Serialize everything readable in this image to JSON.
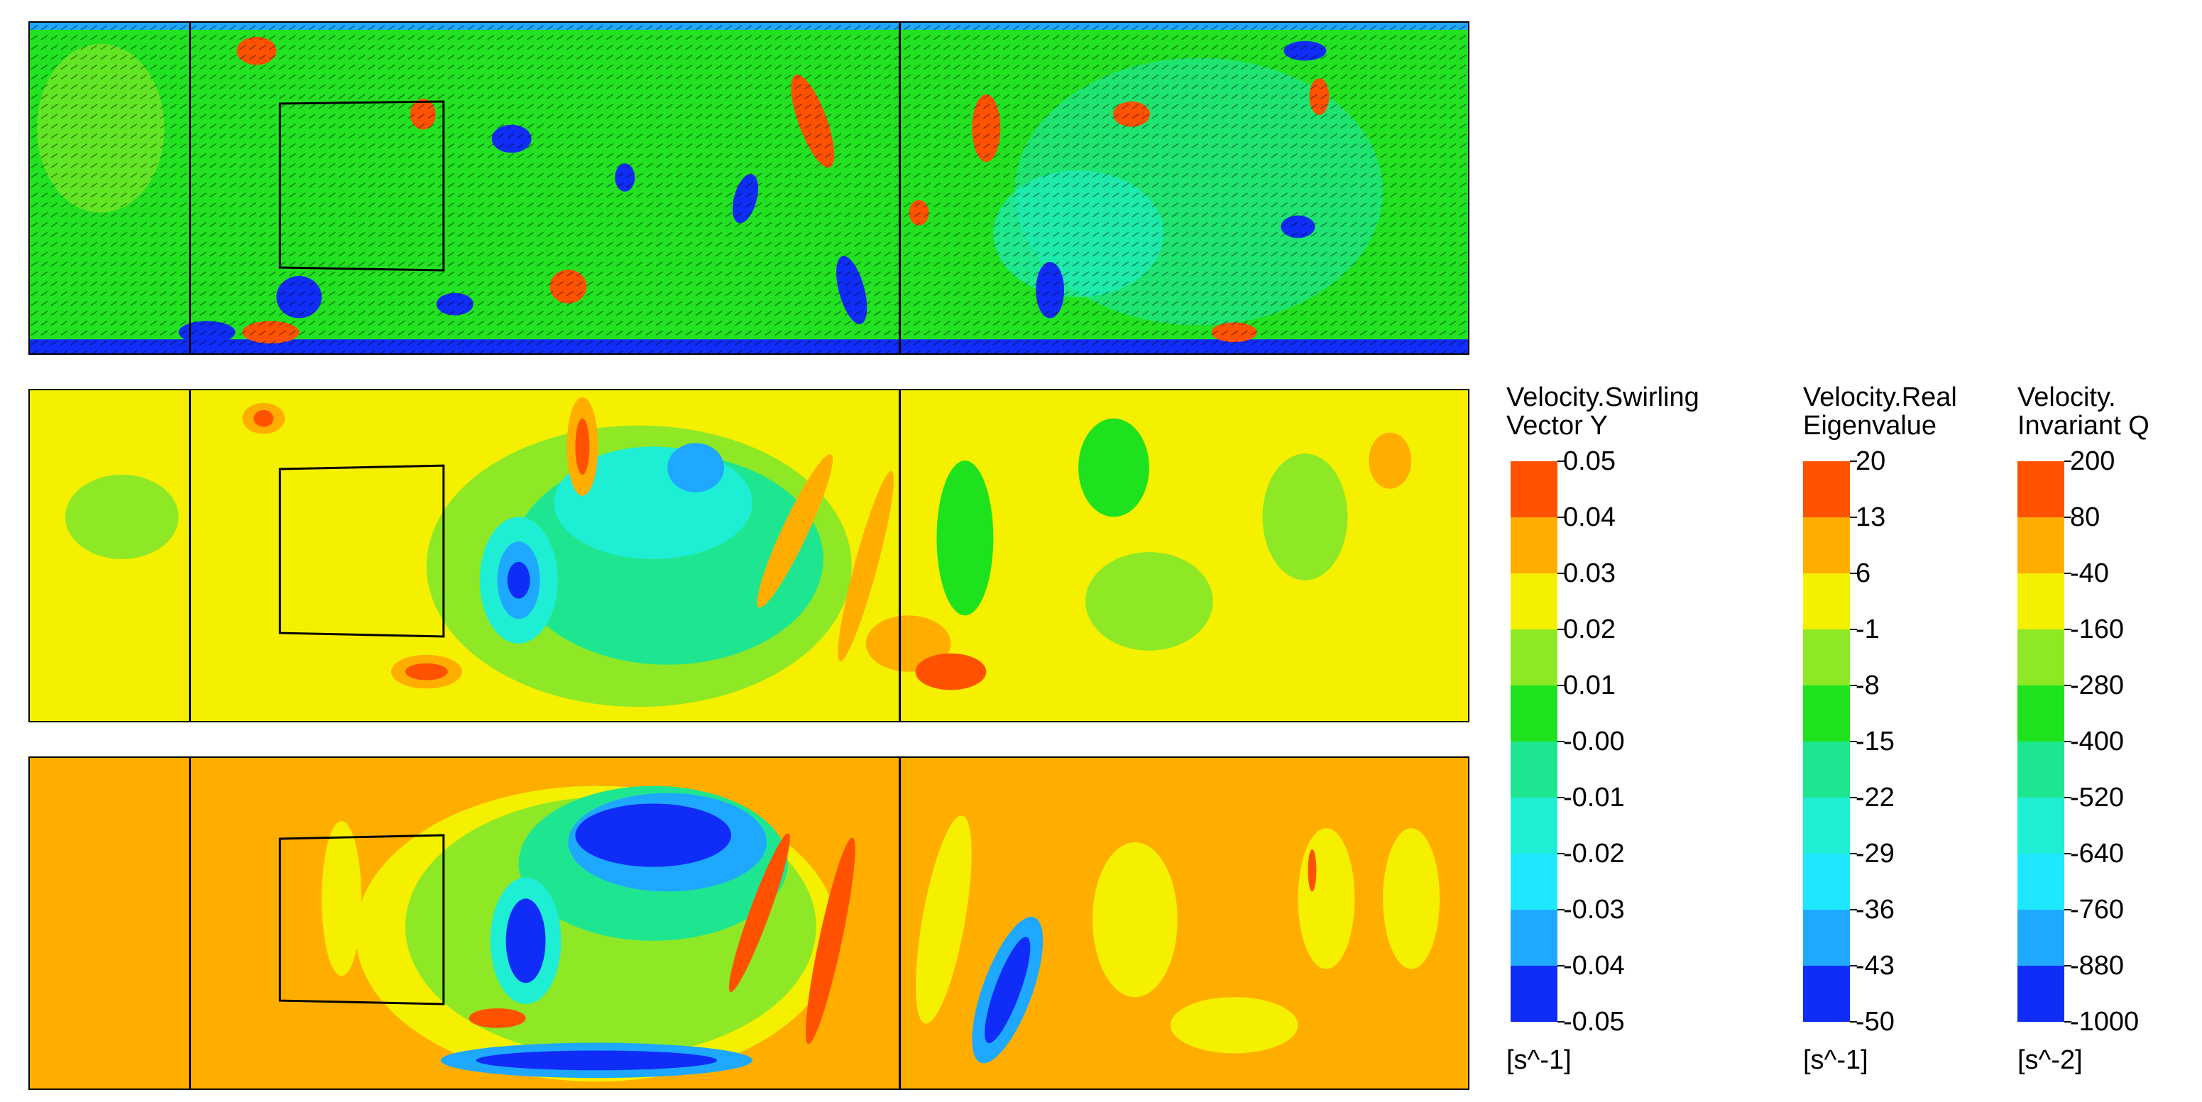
{
  "chart_data": [
    {
      "type": "heatmap",
      "title": "",
      "fields": [
        "Velocity.Swirling Vector Y",
        "Velocity.Real Eigenvalue",
        "Velocity.Invariant Q"
      ],
      "panels": [
        {
          "name": "top",
          "background": "#22e222",
          "vectors_overlay": true
        },
        {
          "name": "middle",
          "background": "#f4f000"
        },
        {
          "name": "bottom",
          "background": "#ffae00"
        }
      ]
    }
  ],
  "colors": [
    "#ff5200",
    "#ffae00",
    "#f4f000",
    "#8ee826",
    "#1ee21e",
    "#1ee690",
    "#1eeed4",
    "#1ee8ff",
    "#1ea8ff",
    "#0f2df6"
  ],
  "legends": [
    {
      "title_lines": [
        "Velocity.Swirling",
        "Vector Y"
      ],
      "ticks": [
        "0.05",
        "0.04",
        "0.03",
        "0.02",
        "0.01",
        "-0.00",
        "-0.01",
        "-0.02",
        "-0.03",
        "-0.04",
        "-0.05"
      ],
      "unit": "[s^-1]"
    },
    {
      "title_lines": [
        "Velocity.Real",
        "Eigenvalue"
      ],
      "ticks": [
        "20",
        "13",
        "6",
        "-1",
        "-8",
        "-15",
        "-22",
        "-29",
        "-36",
        "-43",
        "-50"
      ],
      "unit": "[s^-1]"
    },
    {
      "title_lines": [
        "Velocity.",
        "Invariant Q"
      ],
      "ticks": [
        "200",
        "80",
        "-40",
        "-160",
        "-280",
        "-400",
        "-520",
        "-640",
        "-760",
        "-880",
        "-1000"
      ],
      "unit": "[s^-2]"
    }
  ]
}
